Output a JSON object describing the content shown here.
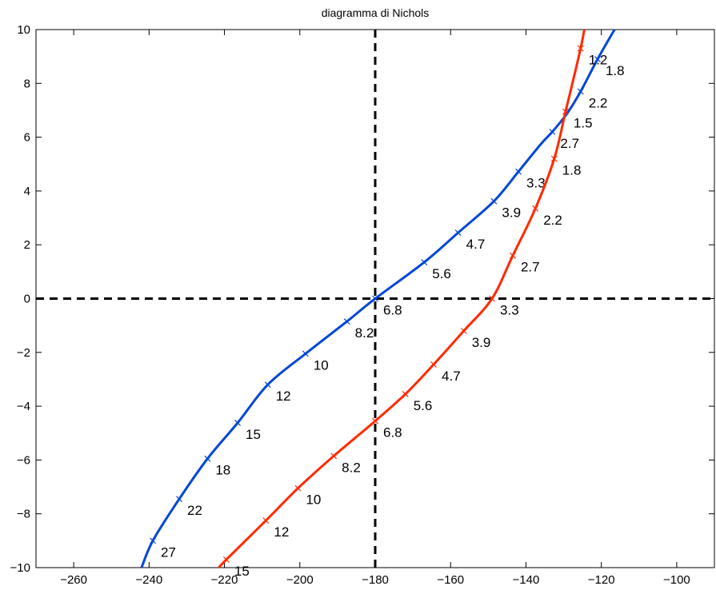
{
  "chart_data": {
    "type": "line",
    "title": "diagramma di Nichols",
    "xlabel": "",
    "ylabel": "",
    "xlim": [
      -270,
      -90
    ],
    "ylim": [
      -10,
      10
    ],
    "xticks": [
      -260,
      -240,
      -220,
      -200,
      -180,
      -160,
      -140,
      -120,
      -100
    ],
    "yticks": [
      -10,
      -8,
      -6,
      -4,
      -2,
      0,
      2,
      4,
      6,
      8,
      10
    ],
    "grid": false,
    "reference_lines": {
      "x": -180,
      "y": 0,
      "style": "dashed",
      "color": "#000000"
    },
    "series": [
      {
        "color": "#0047d6",
        "curve": [
          [
            -242,
            -10
          ],
          [
            -239,
            -9.0
          ],
          [
            -232,
            -7.45
          ],
          [
            -224.5,
            -5.95
          ],
          [
            -216.5,
            -4.62
          ],
          [
            -208.5,
            -3.2
          ],
          [
            -198.5,
            -2.05
          ],
          [
            -187.5,
            -0.85
          ],
          [
            -180,
            0
          ],
          [
            -167,
            1.35
          ],
          [
            -158,
            2.45
          ],
          [
            -148.5,
            3.62
          ],
          [
            -142,
            4.72
          ],
          [
            -136,
            5.75
          ],
          [
            -133,
            6.2
          ],
          [
            -129,
            6.9
          ],
          [
            -125.5,
            7.7
          ],
          [
            -121,
            8.9
          ],
          [
            -116.5,
            10
          ]
        ],
        "markers": [
          {
            "label": "27",
            "x": -239,
            "y": -9.0
          },
          {
            "label": "22",
            "x": -232,
            "y": -7.45
          },
          {
            "label": "18",
            "x": -224.5,
            "y": -5.95
          },
          {
            "label": "15",
            "x": -216.5,
            "y": -4.62
          },
          {
            "label": "12",
            "x": -208.5,
            "y": -3.2
          },
          {
            "label": "10",
            "x": -198.5,
            "y": -2.05
          },
          {
            "label": "8.2",
            "x": -187.5,
            "y": -0.85
          },
          {
            "label": "6.8",
            "x": -180,
            "y": 0.0
          },
          {
            "label": "5.6",
            "x": -167,
            "y": 1.35
          },
          {
            "label": "4.7",
            "x": -158,
            "y": 2.45
          },
          {
            "label": "3.9",
            "x": -148.5,
            "y": 3.62
          },
          {
            "label": "3.3",
            "x": -142,
            "y": 4.72
          },
          {
            "label": "2.7",
            "x": -133,
            "y": 6.2
          },
          {
            "label": "2.2",
            "x": -125.5,
            "y": 7.7
          },
          {
            "label": "1.8",
            "x": -121,
            "y": 8.9
          }
        ]
      },
      {
        "color": "#ff2a00",
        "curve": [
          [
            -221.5,
            -10
          ],
          [
            -219.5,
            -9.7
          ],
          [
            -209,
            -8.25
          ],
          [
            -200.5,
            -7.05
          ],
          [
            -191,
            -5.85
          ],
          [
            -180,
            -4.55
          ],
          [
            -172,
            -3.55
          ],
          [
            -164.5,
            -2.45
          ],
          [
            -156.5,
            -1.2
          ],
          [
            -149,
            0.0
          ],
          [
            -143.5,
            1.6
          ],
          [
            -137.5,
            3.35
          ],
          [
            -132.5,
            5.2
          ],
          [
            -129.5,
            6.95
          ],
          [
            -127.5,
            8.1
          ],
          [
            -125.5,
            9.3
          ],
          [
            -124.5,
            10
          ]
        ],
        "markers": [
          {
            "label": "15",
            "x": -219.5,
            "y": -9.7
          },
          {
            "label": "12",
            "x": -209,
            "y": -8.25
          },
          {
            "label": "10",
            "x": -200.5,
            "y": -7.05
          },
          {
            "label": "8.2",
            "x": -191,
            "y": -5.85
          },
          {
            "label": "6.8",
            "x": -180,
            "y": -4.55
          },
          {
            "label": "5.6",
            "x": -172,
            "y": -3.55
          },
          {
            "label": "4.7",
            "x": -164.5,
            "y": -2.45
          },
          {
            "label": "3.9",
            "x": -156.5,
            "y": -1.2
          },
          {
            "label": "3.3",
            "x": -149,
            "y": 0.0
          },
          {
            "label": "2.7",
            "x": -143.5,
            "y": 1.6
          },
          {
            "label": "2.2",
            "x": -137.5,
            "y": 3.35
          },
          {
            "label": "1.8",
            "x": -132.5,
            "y": 5.2
          },
          {
            "label": "1.5",
            "x": -129.5,
            "y": 6.95
          },
          {
            "label": "1.2",
            "x": -125.5,
            "y": 9.3
          }
        ]
      }
    ]
  }
}
